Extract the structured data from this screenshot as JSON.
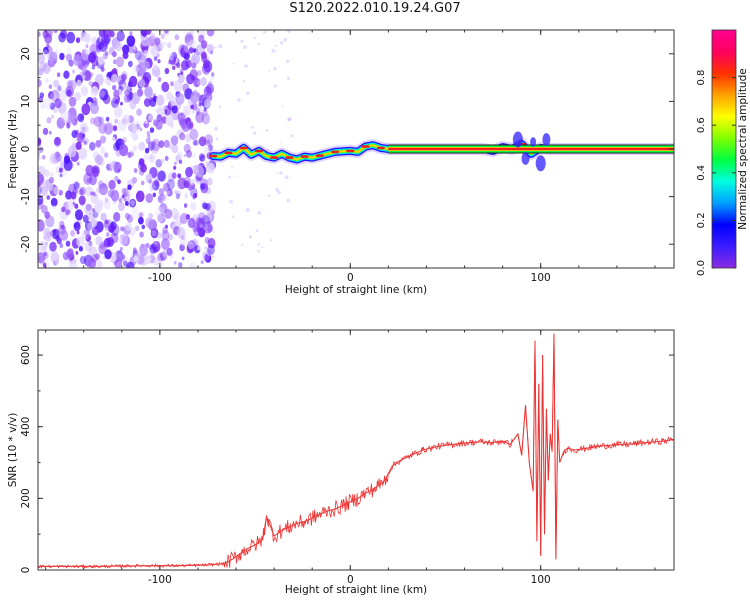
{
  "page": {
    "title": "S120.2022.010.19.24.G07"
  },
  "colors": {
    "snr_line": "#ee3333",
    "ridge": "#ee2020",
    "noise": "#8a3cff",
    "colormap": [
      "#8a2be2",
      "#3b1cff",
      "#0000ff",
      "#00a0ff",
      "#00ffe0",
      "#00ff40",
      "#80ff00",
      "#ffff00",
      "#ffa000",
      "#ff3000",
      "#ff0060",
      "#ff0090"
    ]
  },
  "chart_data": [
    {
      "id": "spectrogram",
      "type": "heatmap",
      "title": "",
      "xlabel": "Height of straight line (km)",
      "ylabel": "Frequency (Hz)",
      "xlim": [
        -164,
        170
      ],
      "ylim": [
        -25,
        25
      ],
      "xticks": [
        -100,
        0,
        100
      ],
      "yticks": [
        -20,
        -10,
        0,
        10,
        20
      ],
      "grid": false,
      "noise_region": {
        "x_range": [
          -164,
          -72
        ],
        "y_range": [
          -25,
          25
        ]
      },
      "ridge": {
        "x": [
          -72,
          -68,
          -64,
          -60,
          -56,
          -52,
          -48,
          -44,
          -40,
          -36,
          -32,
          -28,
          -24,
          -20,
          -16,
          -12,
          -8,
          -4,
          0,
          4,
          8,
          12,
          16,
          20,
          30,
          40,
          50,
          60,
          70,
          75,
          80,
          85,
          90,
          95,
          100,
          105,
          110,
          120,
          130,
          140,
          150,
          160,
          170
        ],
        "y": [
          -1.5,
          -1.6,
          -0.8,
          -1.0,
          0.2,
          -1.2,
          -0.4,
          -1.5,
          -1.8,
          -1.0,
          -1.8,
          -2.2,
          -1.6,
          -1.8,
          -1.4,
          -1.0,
          -0.6,
          -0.5,
          -0.4,
          -0.6,
          0.5,
          0.8,
          0.2,
          0.0,
          0.0,
          0.0,
          0.0,
          0.0,
          0.0,
          -0.4,
          0.4,
          0.0,
          1.0,
          -1.0,
          0.2,
          0.0,
          0.0,
          0.0,
          0.0,
          0.0,
          0.0,
          0.0,
          0.0
        ]
      }
    },
    {
      "id": "colorbar",
      "label": "Normalized spectral amplitude",
      "range": [
        0,
        1
      ],
      "ticks": [
        0.0,
        0.2,
        0.4,
        0.6,
        0.8
      ],
      "tick_labels": [
        "0.0",
        "0.2",
        "0.4",
        "0.6",
        "0.8"
      ]
    },
    {
      "id": "snr",
      "type": "line",
      "title": "",
      "xlabel": "Height of straight line (km)",
      "ylabel": "SNR (10 * v/v)",
      "xlim": [
        -164,
        170
      ],
      "ylim": [
        0,
        670
      ],
      "xticks": [
        -100,
        0,
        100
      ],
      "yticks": [
        0,
        200,
        400,
        600
      ],
      "grid": false,
      "series": [
        {
          "x": [
            -164,
            -150,
            -130,
            -110,
            -90,
            -75,
            -66,
            -62,
            -58,
            -54,
            -50,
            -46,
            -44,
            -40,
            -36,
            -32,
            -28,
            -24,
            -20,
            -16,
            -12,
            -8,
            -4,
            0,
            4,
            8,
            12,
            16,
            18,
            20,
            22,
            26,
            30,
            34,
            38,
            42,
            46,
            50,
            56,
            62,
            68,
            74,
            80,
            84,
            88,
            90,
            92,
            94,
            96,
            97,
            98,
            99,
            100,
            101,
            102,
            103,
            104,
            105,
            106,
            107,
            108,
            109,
            110,
            112,
            114,
            118,
            124,
            130,
            136,
            142,
            148,
            154,
            160,
            165,
            170
          ],
          "y": [
            10,
            10,
            10,
            12,
            12,
            14,
            18,
            30,
            45,
            60,
            70,
            85,
            150,
            95,
            110,
            120,
            130,
            135,
            145,
            155,
            165,
            170,
            180,
            190,
            200,
            215,
            225,
            240,
            250,
            270,
            290,
            305,
            315,
            325,
            335,
            340,
            345,
            348,
            352,
            355,
            358,
            355,
            360,
            350,
            380,
            320,
            460,
            300,
            220,
            640,
            80,
            520,
            40,
            600,
            100,
            450,
            250,
            380,
            330,
            660,
            30,
            420,
            300,
            330,
            340,
            335,
            340,
            345,
            348,
            350,
            352,
            355,
            358,
            360,
            365
          ]
        }
      ]
    }
  ]
}
